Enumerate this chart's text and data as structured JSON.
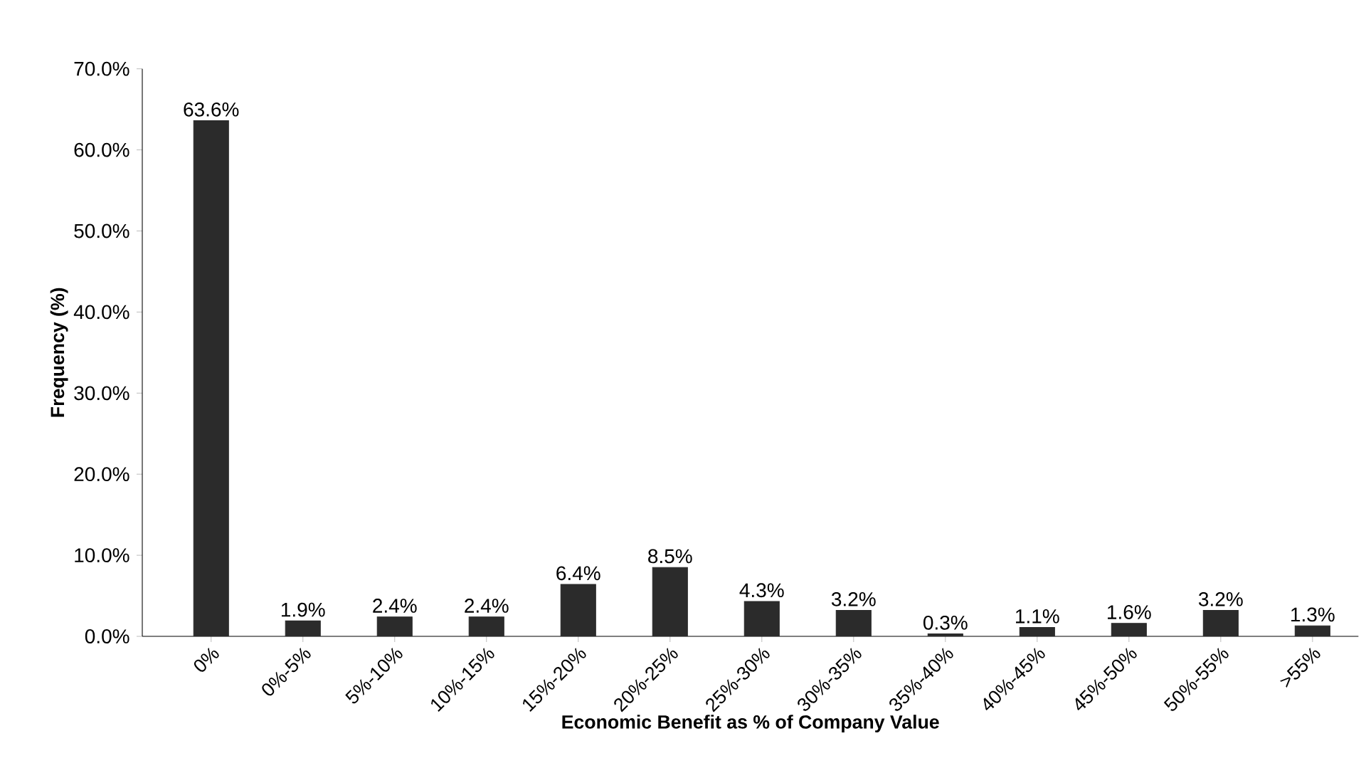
{
  "chart_data": {
    "type": "bar",
    "xlabel": "Economic Benefit as % of Company Value",
    "ylabel": "Frequency (%)",
    "categories": [
      "0%",
      "0%-5%",
      "5%-10%",
      "10%-15%",
      "15%-20%",
      "20%-25%",
      "25%-30%",
      "30%-35%",
      "35%-40%",
      "40%-45%",
      "45%-50%",
      "50%-55%",
      ">55%"
    ],
    "values": [
      63.6,
      1.9,
      2.4,
      2.4,
      6.4,
      8.5,
      4.3,
      3.2,
      0.3,
      1.1,
      1.6,
      3.2,
      1.3
    ],
    "value_labels": [
      "63.6%",
      "1.9%",
      "2.4%",
      "2.4%",
      "6.4%",
      "8.5%",
      "4.3%",
      "3.2%",
      "0.3%",
      "1.1%",
      "1.6%",
      "3.2%",
      "1.3%"
    ],
    "color": "#2b2b2b",
    "ylim": [
      0,
      70
    ],
    "yticks": [
      {
        "value": 0,
        "label": "0.0%"
      },
      {
        "value": 10,
        "label": "10.0%"
      },
      {
        "value": 20,
        "label": "20.0%"
      },
      {
        "value": 30,
        "label": "30.0%"
      },
      {
        "value": 40,
        "label": "40.0%"
      },
      {
        "value": 50,
        "label": "50.0%"
      },
      {
        "value": 60,
        "label": "60.0%"
      },
      {
        "value": 70,
        "label": "70.0%"
      }
    ],
    "grid": false
  }
}
